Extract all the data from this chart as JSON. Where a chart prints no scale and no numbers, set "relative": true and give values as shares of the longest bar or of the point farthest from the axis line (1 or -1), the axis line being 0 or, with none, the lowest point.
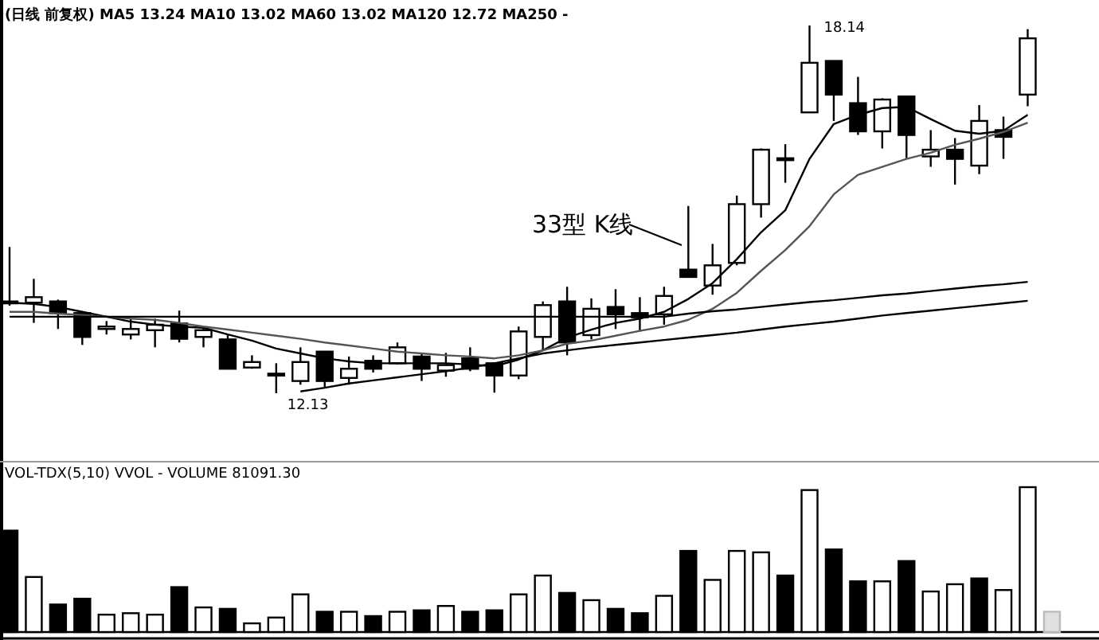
{
  "chart_data": [
    {
      "type": "candlestick",
      "title": "(日线 前复权) MA5 13.24 MA10 13.02 MA60 13.02 MA120 12.72 MA250 -",
      "categories": [
        null,
        null,
        null,
        null,
        null,
        null,
        null,
        null,
        null,
        null,
        null,
        null,
        null,
        null,
        null,
        null,
        null,
        null,
        null,
        null,
        null,
        null,
        null,
        null,
        null,
        null,
        null,
        null,
        null,
        null,
        null,
        null,
        null,
        null,
        null,
        null,
        null,
        null,
        null,
        null,
        null,
        null,
        null
      ],
      "ohlc": [
        [
          13.63,
          14.52,
          13.56,
          13.6
        ],
        [
          13.61,
          14.0,
          13.28,
          13.7
        ],
        [
          13.63,
          13.66,
          13.18,
          13.44
        ],
        [
          13.44,
          13.46,
          12.92,
          13.05
        ],
        [
          13.18,
          13.31,
          13.09,
          13.22
        ],
        [
          13.09,
          13.35,
          13.01,
          13.18
        ],
        [
          13.16,
          13.35,
          12.88,
          13.25
        ],
        [
          13.27,
          13.48,
          12.96,
          13.02
        ],
        [
          13.05,
          13.22,
          12.88,
          13.16
        ],
        [
          13.01,
          13.09,
          12.52,
          12.53
        ],
        [
          12.55,
          12.75,
          12.53,
          12.64
        ],
        [
          12.43,
          12.62,
          12.13,
          12.45
        ],
        [
          12.33,
          12.88,
          12.27,
          12.64
        ],
        [
          12.81,
          12.81,
          12.23,
          12.33
        ],
        [
          12.38,
          12.73,
          12.27,
          12.53
        ],
        [
          12.66,
          12.75,
          12.47,
          12.53
        ],
        [
          12.62,
          12.96,
          12.6,
          12.88
        ],
        [
          12.73,
          12.79,
          12.33,
          12.53
        ],
        [
          12.5,
          12.79,
          12.4,
          12.59
        ],
        [
          12.7,
          12.88,
          12.49,
          12.53
        ],
        [
          12.62,
          12.62,
          12.14,
          12.42
        ],
        [
          12.42,
          13.22,
          12.36,
          13.14
        ],
        [
          13.05,
          13.63,
          12.83,
          13.57
        ],
        [
          13.63,
          13.87,
          12.75,
          12.96
        ],
        [
          13.08,
          13.68,
          13.01,
          13.51
        ],
        [
          13.54,
          13.83,
          13.18,
          13.42
        ],
        [
          13.44,
          13.7,
          13.14,
          13.37
        ],
        [
          13.42,
          13.87,
          13.25,
          13.72
        ],
        [
          14.15,
          15.19,
          14.03,
          14.03
        ],
        [
          13.89,
          14.57,
          13.74,
          14.22
        ],
        [
          14.26,
          15.36,
          14.22,
          15.22
        ],
        [
          15.22,
          16.13,
          15.0,
          16.11
        ],
        [
          15.97,
          16.2,
          15.57,
          15.94
        ],
        [
          16.72,
          18.14,
          16.72,
          17.53
        ],
        [
          17.56,
          17.56,
          16.58,
          17.01
        ],
        [
          16.87,
          17.3,
          16.35,
          16.41
        ],
        [
          16.41,
          16.95,
          16.13,
          16.93
        ],
        [
          16.98,
          16.98,
          15.97,
          16.35
        ],
        [
          16.0,
          16.43,
          15.83,
          16.11
        ],
        [
          16.11,
          16.3,
          15.54,
          15.96
        ],
        [
          15.85,
          16.84,
          15.71,
          16.58
        ],
        [
          16.43,
          16.65,
          15.96,
          16.32
        ],
        [
          17.01,
          18.08,
          16.82,
          17.93
        ]
      ],
      "series": [
        {
          "type": "line",
          "color": "#000000",
          "values": [
            13.61,
            13.59,
            13.54,
            13.46,
            13.38,
            13.3,
            13.25,
            13.22,
            13.2,
            13.09,
            12.99,
            12.86,
            12.78,
            12.7,
            12.65,
            12.62,
            12.62,
            12.62,
            12.62,
            12.6,
            12.57,
            12.68,
            12.83,
            13.04,
            13.17,
            13.28,
            13.35,
            13.46,
            13.67,
            13.93,
            14.32,
            14.76,
            15.12,
            15.96,
            16.53,
            16.68,
            16.79,
            16.81,
            16.61,
            16.42,
            16.37,
            16.42,
            16.68
          ]
        },
        {
          "type": "line",
          "color": "#555555",
          "values": [
            13.46,
            13.46,
            13.43,
            13.41,
            13.38,
            13.35,
            13.33,
            13.28,
            13.22,
            13.17,
            13.12,
            13.07,
            13.02,
            12.96,
            12.91,
            12.86,
            12.81,
            12.78,
            12.75,
            12.73,
            12.7,
            12.75,
            12.83,
            12.94,
            12.99,
            13.07,
            13.15,
            13.22,
            13.33,
            13.51,
            13.77,
            14.13,
            14.47,
            14.86,
            15.38,
            15.7,
            15.83,
            15.96,
            16.06,
            16.19,
            16.29,
            16.4,
            16.55
          ]
        },
        {
          "type": "line",
          "color": "#000000",
          "values": [
            13.38,
            13.38,
            13.38,
            13.38,
            13.38,
            13.38,
            13.38,
            13.38,
            13.38,
            13.38,
            13.38,
            13.38,
            13.38,
            13.38,
            13.38,
            13.38,
            13.38,
            13.38,
            13.38,
            13.38,
            13.38,
            13.38,
            13.38,
            13.38,
            13.38,
            13.38,
            13.38,
            13.38,
            13.43,
            13.47,
            13.5,
            13.54,
            13.58,
            13.62,
            13.65,
            13.69,
            13.73,
            13.76,
            13.8,
            13.84,
            13.88,
            13.91,
            13.95
          ]
        },
        {
          "type": "line",
          "color": "#000000",
          "values": [
            null,
            null,
            null,
            null,
            null,
            null,
            null,
            null,
            null,
            null,
            null,
            null,
            12.16,
            12.22,
            12.29,
            12.34,
            12.39,
            12.44,
            12.49,
            12.55,
            12.62,
            12.7,
            12.78,
            12.83,
            12.88,
            12.92,
            12.96,
            13.0,
            13.04,
            13.08,
            13.12,
            13.17,
            13.22,
            13.26,
            13.3,
            13.35,
            13.4,
            13.44,
            13.48,
            13.52,
            13.56,
            13.6,
            13.64
          ]
        }
      ],
      "annotations": [
        "18.14",
        "12.13",
        "33型 K线"
      ]
    },
    {
      "type": "bar",
      "title": "VOL-TDX(5,10) VVOL - VOLUME 81091.30",
      "relative": true,
      "categories": [
        null,
        null,
        null,
        null,
        null,
        null,
        null,
        null,
        null,
        null,
        null,
        null,
        null,
        null,
        null,
        null,
        null,
        null,
        null,
        null,
        null,
        null,
        null,
        null,
        null,
        null,
        null,
        null,
        null,
        null,
        null,
        null,
        null,
        null,
        null,
        null,
        null,
        null,
        null,
        null,
        null,
        null,
        null,
        null
      ],
      "values": [
        0.7,
        0.38,
        0.19,
        0.23,
        0.12,
        0.13,
        0.12,
        0.31,
        0.17,
        0.16,
        0.06,
        0.1,
        0.26,
        0.14,
        0.14,
        0.11,
        0.14,
        0.15,
        0.18,
        0.14,
        0.15,
        0.26,
        0.39,
        0.27,
        0.22,
        0.16,
        0.13,
        0.25,
        0.56,
        0.36,
        0.56,
        0.55,
        0.39,
        0.98,
        0.57,
        0.35,
        0.35,
        0.49,
        0.28,
        0.33,
        0.37,
        0.29,
        1,
        0.14
      ],
      "colors": [
        "#000000",
        "#ffffff",
        "#000000",
        "#000000",
        "#ffffff",
        "#ffffff",
        "#ffffff",
        "#000000",
        "#ffffff",
        "#000000",
        "#ffffff",
        "#ffffff",
        "#ffffff",
        "#000000",
        "#ffffff",
        "#000000",
        "#ffffff",
        "#000000",
        "#ffffff",
        "#000000",
        "#000000",
        "#ffffff",
        "#ffffff",
        "#000000",
        "#ffffff",
        "#000000",
        "#000000",
        "#ffffff",
        "#000000",
        "#ffffff",
        "#ffffff",
        "#ffffff",
        "#000000",
        "#ffffff",
        "#000000",
        "#000000",
        "#ffffff",
        "#000000",
        "#ffffff",
        "#ffffff",
        "#000000",
        "#ffffff",
        "#ffffff",
        "#e0e0e0"
      ]
    }
  ]
}
